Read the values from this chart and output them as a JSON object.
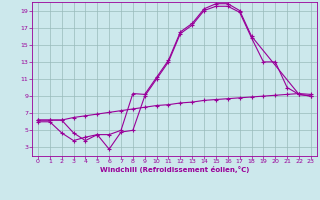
{
  "bg_color": "#cce8ec",
  "line_color": "#990099",
  "grid_color": "#99bbbb",
  "xlabel": "Windchill (Refroidissement éolien,°C)",
  "xlim": [
    -0.5,
    23.5
  ],
  "ylim": [
    2,
    20
  ],
  "xticks": [
    0,
    1,
    2,
    3,
    4,
    5,
    6,
    7,
    8,
    9,
    10,
    11,
    12,
    13,
    14,
    15,
    16,
    17,
    18,
    19,
    20,
    21,
    22,
    23
  ],
  "yticks": [
    3,
    5,
    7,
    9,
    11,
    13,
    15,
    17,
    19
  ],
  "line1_x": [
    0,
    1,
    2,
    3,
    4,
    5,
    6,
    7,
    8,
    9,
    10,
    11,
    12,
    13,
    14,
    15,
    16,
    17,
    18,
    22,
    23
  ],
  "line1_y": [
    6.2,
    6.2,
    6.2,
    4.7,
    3.8,
    4.5,
    4.5,
    5.0,
    9.3,
    9.2,
    11.2,
    13.2,
    16.5,
    17.5,
    19.2,
    19.8,
    19.8,
    19.0,
    16.0,
    9.2,
    9.0
  ],
  "line2_x": [
    0,
    1,
    2,
    3,
    4,
    5,
    6,
    7,
    8,
    9,
    10,
    11,
    12,
    13,
    14,
    15,
    16,
    17,
    18,
    19,
    20,
    21,
    22,
    23
  ],
  "line2_y": [
    6.2,
    6.2,
    6.2,
    6.5,
    6.7,
    6.9,
    7.1,
    7.3,
    7.5,
    7.7,
    7.9,
    8.0,
    8.2,
    8.3,
    8.5,
    8.6,
    8.7,
    8.8,
    8.9,
    9.0,
    9.1,
    9.2,
    9.3,
    9.2
  ],
  "line3_x": [
    0,
    1,
    2,
    3,
    4,
    5,
    6,
    7,
    8,
    9,
    10,
    11,
    12,
    13,
    14,
    15,
    16,
    17,
    18,
    19,
    20,
    21,
    22,
    23
  ],
  "line3_y": [
    6.0,
    6.0,
    4.7,
    3.8,
    4.2,
    4.5,
    2.8,
    4.8,
    5.0,
    9.0,
    11.0,
    13.0,
    16.3,
    17.3,
    19.0,
    19.5,
    19.5,
    18.8,
    15.8,
    13.0,
    13.0,
    10.0,
    9.2,
    9.0
  ]
}
